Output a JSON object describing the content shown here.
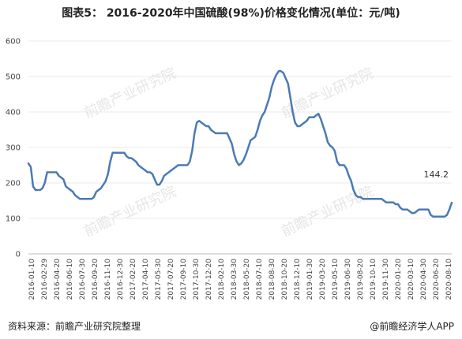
{
  "chart_data": {
    "type": "line",
    "title": "图表5： 2016-2020年中国硫酸(98%)价格变化情况(单位：元/吨)",
    "ylim": [
      0,
      600
    ],
    "yticks": [
      0,
      100,
      200,
      300,
      400,
      500,
      600
    ],
    "grid": true,
    "legend": "none",
    "line_color": "#4a7ab5",
    "x_tick_labels": [
      "2016-01-10",
      "2016-02-29",
      "2016-04-20",
      "2016-06-10",
      "2016-07-30",
      "2016-09-20",
      "2016-11-10",
      "2016-12-30",
      "2017-02-20",
      "2017-04-10",
      "2017-05-30",
      "2017-07-20",
      "2017-09-10",
      "2017-10-30",
      "2017-12-20",
      "2018-02-10",
      "2018-03-30",
      "2018-05-20",
      "2018-07-10",
      "2018-08-30",
      "2018-10-20",
      "2018-12-10",
      "2019-01-30",
      "2019-03-20",
      "2019-05-10",
      "2019-06-30",
      "2019-08-20",
      "2019-10-10",
      "2019-11-30",
      "2020-01-20",
      "2020-03-10",
      "2020-04-30",
      "2020-06-20",
      "2020-08-10"
    ],
    "values": [
      255,
      245,
      190,
      180,
      180,
      180,
      185,
      200,
      230,
      230,
      230,
      230,
      230,
      220,
      215,
      210,
      190,
      185,
      180,
      175,
      165,
      160,
      155,
      155,
      155,
      155,
      155,
      155,
      160,
      175,
      180,
      185,
      195,
      205,
      225,
      260,
      285,
      285,
      285,
      285,
      285,
      285,
      275,
      270,
      270,
      265,
      260,
      250,
      245,
      240,
      235,
      230,
      230,
      225,
      210,
      195,
      195,
      205,
      220,
      225,
      230,
      235,
      240,
      245,
      250,
      250,
      250,
      250,
      250,
      260,
      290,
      340,
      370,
      375,
      370,
      365,
      360,
      360,
      350,
      345,
      340,
      340,
      340,
      340,
      340,
      340,
      325,
      310,
      280,
      260,
      250,
      255,
      265,
      280,
      300,
      320,
      325,
      330,
      350,
      375,
      390,
      400,
      420,
      440,
      470,
      490,
      505,
      515,
      515,
      510,
      495,
      480,
      440,
      400,
      370,
      360,
      360,
      365,
      370,
      375,
      385,
      385,
      385,
      390,
      395,
      380,
      360,
      340,
      315,
      305,
      300,
      290,
      260,
      250,
      250,
      250,
      240,
      220,
      205,
      180,
      165,
      160,
      160,
      155,
      155,
      155,
      155,
      155,
      155,
      155,
      155,
      155,
      150,
      145,
      145,
      145,
      145,
      140,
      140,
      130,
      125,
      125,
      125,
      120,
      115,
      115,
      120,
      125,
      125,
      125,
      125,
      125,
      110,
      105,
      105,
      105,
      105,
      105,
      105,
      110,
      125,
      144.2
    ],
    "annotations": [
      {
        "text": "144.2"
      }
    ]
  },
  "footer": {
    "source": "资料来源：前瞻产业研究院整理",
    "brand": "@前瞻经济学人APP"
  },
  "watermark": {
    "text_main": "前瞻产业研究院"
  }
}
